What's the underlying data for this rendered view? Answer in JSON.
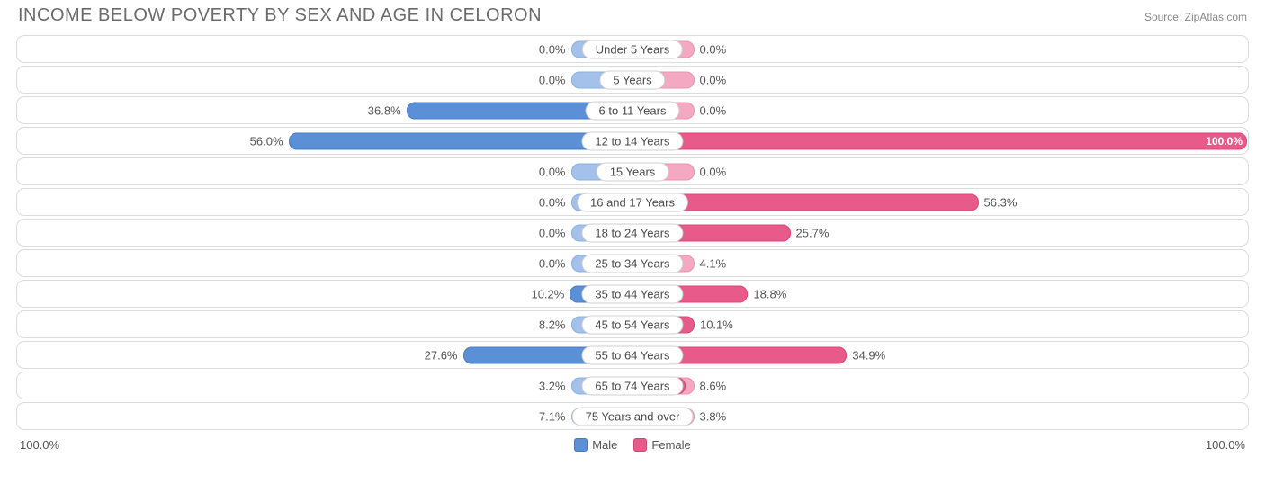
{
  "chart": {
    "type": "diverging-bar",
    "title": "INCOME BELOW POVERTY BY SEX AND AGE IN CELORON",
    "source_label": "Source:",
    "source_name": "ZipAtlas.com",
    "title_color": "#6b6b6b",
    "title_fontsize": 20,
    "label_fontsize": 13,
    "background_color": "#ffffff",
    "row_border_color": "#dcdcdc",
    "pill_border_color": "#cfcfcf",
    "base_bar_width_pct": 10.0,
    "colors": {
      "male_base": "#a3c1ea",
      "male_value": "#5b8fd6",
      "female_base": "#f4a8c2",
      "female_value": "#e85a8a"
    },
    "axis": {
      "left_label": "100.0%",
      "right_label": "100.0%",
      "max": 100.0
    },
    "legend": [
      {
        "label": "Male",
        "color": "#5b8fd6"
      },
      {
        "label": "Female",
        "color": "#e85a8a"
      }
    ],
    "rows": [
      {
        "category": "Under 5 Years",
        "male": 0.0,
        "female": 0.0,
        "male_label": "0.0%",
        "female_label": "0.0%"
      },
      {
        "category": "5 Years",
        "male": 0.0,
        "female": 0.0,
        "male_label": "0.0%",
        "female_label": "0.0%"
      },
      {
        "category": "6 to 11 Years",
        "male": 36.8,
        "female": 0.0,
        "male_label": "36.8%",
        "female_label": "0.0%"
      },
      {
        "category": "12 to 14 Years",
        "male": 56.0,
        "female": 100.0,
        "male_label": "56.0%",
        "female_label": "100.0%"
      },
      {
        "category": "15 Years",
        "male": 0.0,
        "female": 0.0,
        "male_label": "0.0%",
        "female_label": "0.0%"
      },
      {
        "category": "16 and 17 Years",
        "male": 0.0,
        "female": 56.3,
        "male_label": "0.0%",
        "female_label": "56.3%"
      },
      {
        "category": "18 to 24 Years",
        "male": 0.0,
        "female": 25.7,
        "male_label": "0.0%",
        "female_label": "25.7%"
      },
      {
        "category": "25 to 34 Years",
        "male": 0.0,
        "female": 4.1,
        "male_label": "0.0%",
        "female_label": "4.1%"
      },
      {
        "category": "35 to 44 Years",
        "male": 10.2,
        "female": 18.8,
        "male_label": "10.2%",
        "female_label": "18.8%"
      },
      {
        "category": "45 to 54 Years",
        "male": 8.2,
        "female": 10.1,
        "male_label": "8.2%",
        "female_label": "10.1%"
      },
      {
        "category": "55 to 64 Years",
        "male": 27.6,
        "female": 34.9,
        "male_label": "27.6%",
        "female_label": "34.9%"
      },
      {
        "category": "65 to 74 Years",
        "male": 3.2,
        "female": 8.6,
        "male_label": "3.2%",
        "female_label": "8.6%"
      },
      {
        "category": "75 Years and over",
        "male": 7.1,
        "female": 3.8,
        "male_label": "7.1%",
        "female_label": "3.8%"
      }
    ]
  }
}
